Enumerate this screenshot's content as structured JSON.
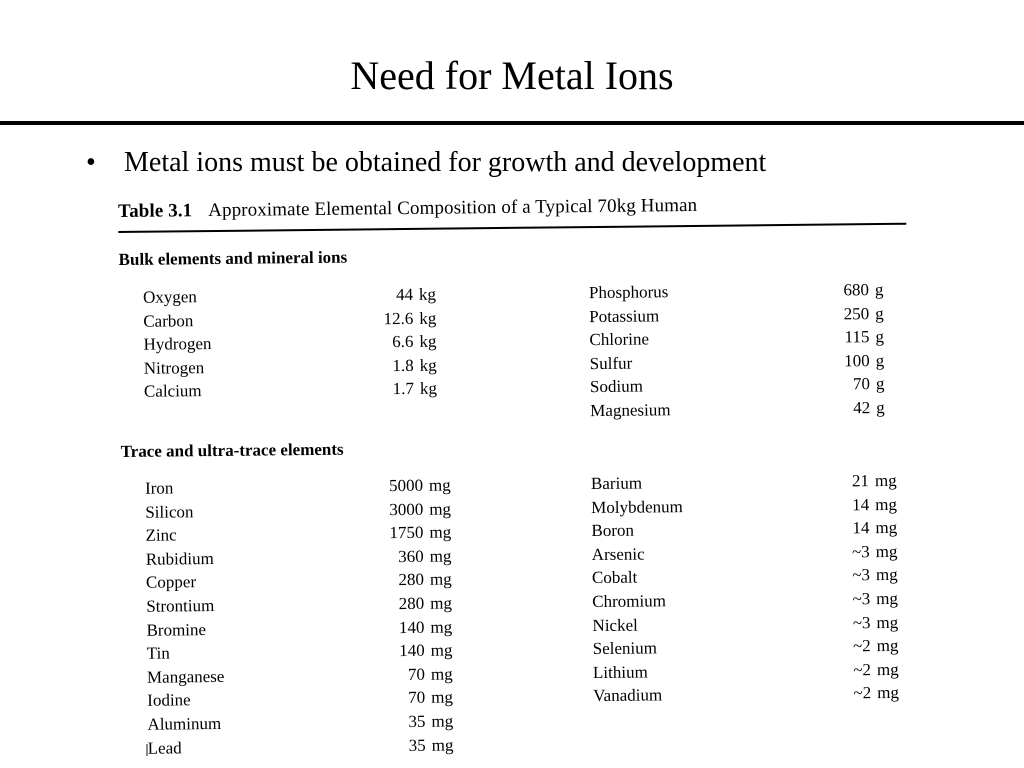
{
  "slide": {
    "title": "Need for Metal Ions",
    "bullet_symbol": "•",
    "bullet_text": "Metal ions must be obtained for growth and development"
  },
  "table": {
    "number": "Table 3.1",
    "caption": "Approximate Elemental Composition of a Typical 70kg Human",
    "bulk": {
      "heading": "Bulk elements and mineral ions",
      "left": [
        {
          "name": "Oxygen",
          "amount": "44",
          "unit": "kg"
        },
        {
          "name": "Carbon",
          "amount": "12.6",
          "unit": "kg"
        },
        {
          "name": "Hydrogen",
          "amount": "6.6",
          "unit": "kg"
        },
        {
          "name": "Nitrogen",
          "amount": "1.8",
          "unit": "kg"
        },
        {
          "name": "Calcium",
          "amount": "1.7",
          "unit": "kg"
        }
      ],
      "right": [
        {
          "name": "Phosphorus",
          "amount": "680",
          "unit": "g"
        },
        {
          "name": "Potassium",
          "amount": "250",
          "unit": "g"
        },
        {
          "name": "Chlorine",
          "amount": "115",
          "unit": "g"
        },
        {
          "name": "Sulfur",
          "amount": "100",
          "unit": "g"
        },
        {
          "name": "Sodium",
          "amount": "70",
          "unit": "g"
        },
        {
          "name": "Magnesium",
          "amount": "42",
          "unit": "g"
        }
      ]
    },
    "trace": {
      "heading": "Trace and ultra-trace elements",
      "left": [
        {
          "name": "Iron",
          "amount": "5000",
          "unit": "mg"
        },
        {
          "name": "Silicon",
          "amount": "3000",
          "unit": "mg"
        },
        {
          "name": "Zinc",
          "amount": "1750",
          "unit": "mg"
        },
        {
          "name": "Rubidium",
          "amount": "360",
          "unit": "mg"
        },
        {
          "name": "Copper",
          "amount": "280",
          "unit": "mg"
        },
        {
          "name": "Strontium",
          "amount": "280",
          "unit": "mg"
        },
        {
          "name": "Bromine",
          "amount": "140",
          "unit": "mg"
        },
        {
          "name": "Tin",
          "amount": "140",
          "unit": "mg"
        },
        {
          "name": "Manganese",
          "amount": "70",
          "unit": "mg"
        },
        {
          "name": "Iodine",
          "amount": "70",
          "unit": "mg"
        },
        {
          "name": "Aluminum",
          "amount": "35",
          "unit": "mg"
        },
        {
          "name": "Lead",
          "amount": "35",
          "unit": "mg"
        }
      ],
      "right": [
        {
          "name": "Barium",
          "amount": "21",
          "unit": "mg"
        },
        {
          "name": "Molybdenum",
          "amount": "14",
          "unit": "mg"
        },
        {
          "name": "Boron",
          "amount": "14",
          "unit": "mg"
        },
        {
          "name": "Arsenic",
          "amount": "~3",
          "unit": "mg"
        },
        {
          "name": "Cobalt",
          "amount": "~3",
          "unit": "mg"
        },
        {
          "name": "Chromium",
          "amount": "~3",
          "unit": "mg"
        },
        {
          "name": "Nickel",
          "amount": "~3",
          "unit": "mg"
        },
        {
          "name": "Selenium",
          "amount": "~2",
          "unit": "mg"
        },
        {
          "name": "Lithium",
          "amount": "~2",
          "unit": "mg"
        },
        {
          "name": "Vanadium",
          "amount": "~2",
          "unit": "mg"
        }
      ]
    }
  }
}
